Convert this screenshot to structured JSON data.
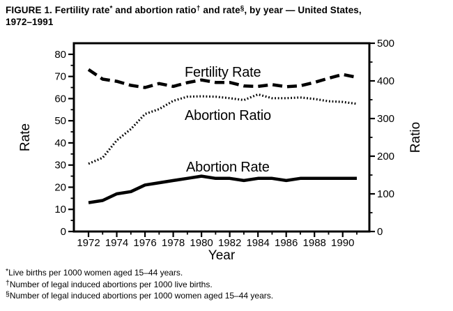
{
  "title": {
    "part1": "FIGURE 1. Fertility rate",
    "sup1": "*",
    "part2": " and abortion ratio",
    "sup2": "†",
    "part3": " and rate",
    "sup3": "§",
    "part4": ", by year — United States,",
    "line2": "1972–1991"
  },
  "footnotes": [
    {
      "marker": "*",
      "text": "Live births per 1000 women aged 15–44 years."
    },
    {
      "marker": "†",
      "text": "Number of legal induced abortions per 1000 live births."
    },
    {
      "marker": "§",
      "text": "Number of legal induced abortions per 1000 women aged 15–44 years."
    }
  ],
  "colors": {
    "ink": "#000000",
    "background": "#ffffff"
  },
  "chart_data": {
    "type": "line",
    "title": "Fertility rate and abortion ratio and rate, by year — United States, 1972–1991",
    "grid": false,
    "x_axis": {
      "label": "Year",
      "years": [
        1972,
        1973,
        1974,
        1975,
        1976,
        1977,
        1978,
        1979,
        1980,
        1981,
        1982,
        1983,
        1984,
        1985,
        1986,
        1987,
        1988,
        1989,
        1990,
        1991
      ],
      "labeled_years": [
        1972,
        1974,
        1976,
        1978,
        1980,
        1982,
        1984,
        1986,
        1988,
        1990
      ]
    },
    "left_axis": {
      "label": "Rate",
      "range": [
        0,
        85
      ],
      "ticks": [
        0,
        10,
        20,
        30,
        40,
        50,
        60,
        70,
        80
      ],
      "minor_step": 5
    },
    "right_axis": {
      "label": "Ratio",
      "range": [
        0,
        500
      ],
      "ticks": [
        0,
        100,
        200,
        300,
        400,
        500
      ],
      "minor_step": 50
    },
    "series": [
      {
        "name": "Fertility Rate",
        "axis": "left",
        "style": "dashed",
        "values": [
          73.1,
          68.8,
          67.8,
          66.0,
          65.0,
          66.8,
          65.5,
          67.2,
          68.4,
          67.3,
          67.3,
          65.7,
          65.5,
          66.3,
          65.4,
          65.8,
          67.3,
          69.2,
          70.9,
          69.6
        ]
      },
      {
        "name": "Abortion Ratio",
        "axis": "right",
        "style": "dotted",
        "values": [
          180,
          196,
          242,
          272,
          312,
          325,
          347,
          358,
          359,
          358,
          354,
          349,
          364,
          354,
          354,
          356,
          352,
          346,
          344,
          339
        ]
      },
      {
        "name": "Abortion Rate",
        "axis": "left",
        "style": "solid",
        "values": [
          13,
          14,
          17,
          18,
          21,
          22,
          23,
          24,
          25,
          24,
          24,
          23,
          24,
          24,
          23,
          24,
          24,
          24,
          24,
          24
        ]
      }
    ]
  }
}
